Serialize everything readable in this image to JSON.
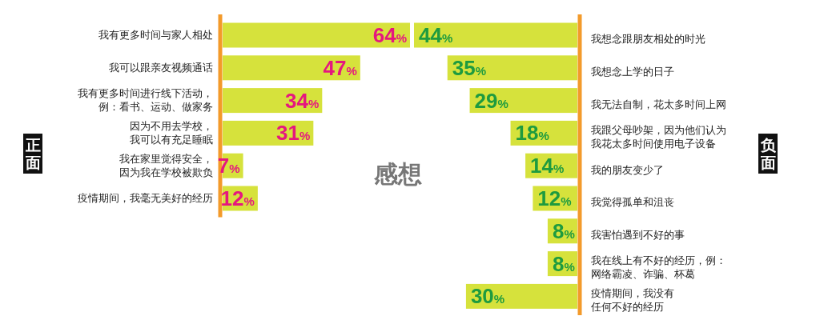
{
  "chart_data": [
    {
      "type": "bar",
      "orientation": "horizontal",
      "title": "感想",
      "ylabel": "正面",
      "color": "#d6e23c",
      "categories": [
        "我有更多时间与家人相处",
        "我可以跟亲友视频通话",
        "我有更多时间进行线下活动，例：看书、运动、做家务",
        "因为不用去学校，我可以有充足睡眠",
        "我在家里觉得安全，因为我在学校被欺负",
        "疫情期间，我毫无美好的经历"
      ],
      "values": [
        64,
        47,
        34,
        31,
        7,
        12
      ],
      "value_labels": [
        "64%",
        "47%",
        "34%",
        "31%",
        "7%",
        "12%"
      ]
    },
    {
      "type": "bar",
      "orientation": "horizontal",
      "y2label": "负面",
      "color": "#d6e23c",
      "categories": [
        "我想念跟朋友相处的时光",
        "我想念上学的日子",
        "我无法自制，花太多时间上网",
        "我跟父母吵架，因为他们认为我花太多时间使用电子设备",
        "我的朋友变少了",
        "我觉得孤单和沮丧",
        "我害怕遇到不好的事",
        "我在线上有不好的经历，例：网络霸凌、诈骗、杯葛",
        "疫情期间，我没有任何不好的经历"
      ],
      "values": [
        44,
        35,
        29,
        18,
        14,
        12,
        8,
        8,
        30
      ],
      "value_labels": [
        "44%",
        "35%",
        "29%",
        "18%",
        "14%",
        "12%",
        "8%",
        "8%",
        "30%"
      ]
    }
  ]
}
